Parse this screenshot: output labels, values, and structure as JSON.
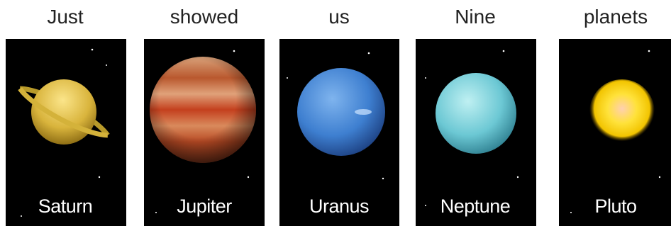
{
  "cards": [
    {
      "caption": "Just",
      "label": "Saturn"
    },
    {
      "caption": "showed",
      "label": "Jupiter"
    },
    {
      "caption": "us",
      "label": "Uranus"
    },
    {
      "caption": "Nine",
      "label": "Neptune"
    },
    {
      "caption": "planets",
      "label": "Pluto"
    }
  ]
}
